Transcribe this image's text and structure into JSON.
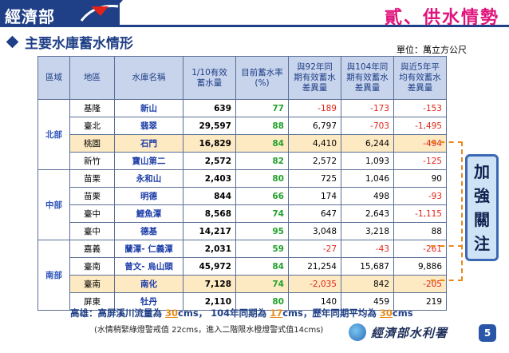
{
  "header": {
    "ministry": "經濟部",
    "section_title": "貳、供水情勢"
  },
  "subtitle": "主要水庫蓄水情形",
  "unit": "單位：萬立方公尺",
  "table": {
    "headers": [
      "區域",
      "地區",
      "水庫名稱",
      "1/10有效蓄水量",
      "目前蓄水率(%)",
      "與92年同期有效蓄水差異量",
      "與104年同期有效蓄水差異量",
      "與近5年平均有效蓄水差異量"
    ],
    "regions": [
      {
        "name": "北部",
        "rows": [
          {
            "area": "基隆",
            "reservoir": "新山",
            "capacity": "639",
            "rate": "77",
            "d92": "-189",
            "d104": "-173",
            "d5y": "-153",
            "highlight": false
          },
          {
            "area": "臺北",
            "reservoir": "翡翠",
            "capacity": "29,597",
            "rate": "88",
            "d92": "6,797",
            "d104": "-703",
            "d5y": "-1,495",
            "highlight": false
          },
          {
            "area": "桃園",
            "reservoir": "石門",
            "capacity": "16,829",
            "rate": "84",
            "d92": "4,410",
            "d104": "6,244",
            "d5y": "-494",
            "highlight": true
          },
          {
            "area": "新竹",
            "reservoir": "寶山第二",
            "capacity": "2,572",
            "rate": "82",
            "d92": "2,572",
            "d104": "1,093",
            "d5y": "-125",
            "highlight": false
          }
        ]
      },
      {
        "name": "中部",
        "rows": [
          {
            "area": "苗栗",
            "reservoir": "永和山",
            "capacity": "2,403",
            "rate": "80",
            "d92": "725",
            "d104": "1,046",
            "d5y": "90",
            "highlight": false
          },
          {
            "area": "苗栗",
            "reservoir": "明德",
            "capacity": "844",
            "rate": "66",
            "d92": "174",
            "d104": "498",
            "d5y": "-93",
            "highlight": false
          },
          {
            "area": "臺中",
            "reservoir": "鯉魚潭",
            "capacity": "8,568",
            "rate": "74",
            "d92": "647",
            "d104": "2,643",
            "d5y": "-1,115",
            "highlight": false
          },
          {
            "area": "臺中",
            "reservoir": "德基",
            "capacity": "14,217",
            "rate": "95",
            "d92": "3,048",
            "d104": "3,218",
            "d5y": "88",
            "highlight": false
          }
        ]
      },
      {
        "name": "南部",
        "rows": [
          {
            "area": "嘉義",
            "reservoir": "蘭潭- 仁義潭",
            "capacity": "2,031",
            "rate": "59",
            "d92": "-27",
            "d104": "-43",
            "d5y": "-261",
            "highlight": false
          },
          {
            "area": "臺南",
            "reservoir": "曾文- 烏山頭",
            "capacity": "45,972",
            "rate": "84",
            "d92": "21,254",
            "d104": "15,687",
            "d5y": "9,886",
            "highlight": false
          },
          {
            "area": "臺南",
            "reservoir": "南化",
            "capacity": "7,128",
            "rate": "74",
            "d92": "-2,035",
            "d104": "842",
            "d5y": "-205",
            "highlight": true
          },
          {
            "area": "屏東",
            "reservoir": "牡丹",
            "capacity": "2,110",
            "rate": "80",
            "d92": "140",
            "d104": "459",
            "d5y": "219",
            "highlight": false
          }
        ]
      }
    ]
  },
  "side_tag": [
    "加",
    "強",
    "關",
    "注"
  ],
  "footer": {
    "prefix": "高雄：高屏溪川流量為 ",
    "v1": "30",
    "mid1": "cms， 104年同期為 ",
    "v2": "17",
    "mid2": "cms，歷年同期平均為 ",
    "v3": "30",
    "suffix": "cms",
    "note": "(水情稍緊綠燈警戒值 22cms，進入二階限水橙燈警式值14cms)"
  },
  "logo_text": "經濟部水利署",
  "page_number": "5",
  "colors": {
    "brand": "#1f3f86",
    "title_accent": "#e0147c",
    "negative": "#e2231a",
    "rate": "#22a12c",
    "highlight_row": "#fde9c2",
    "bracket": "#e88a1a"
  }
}
